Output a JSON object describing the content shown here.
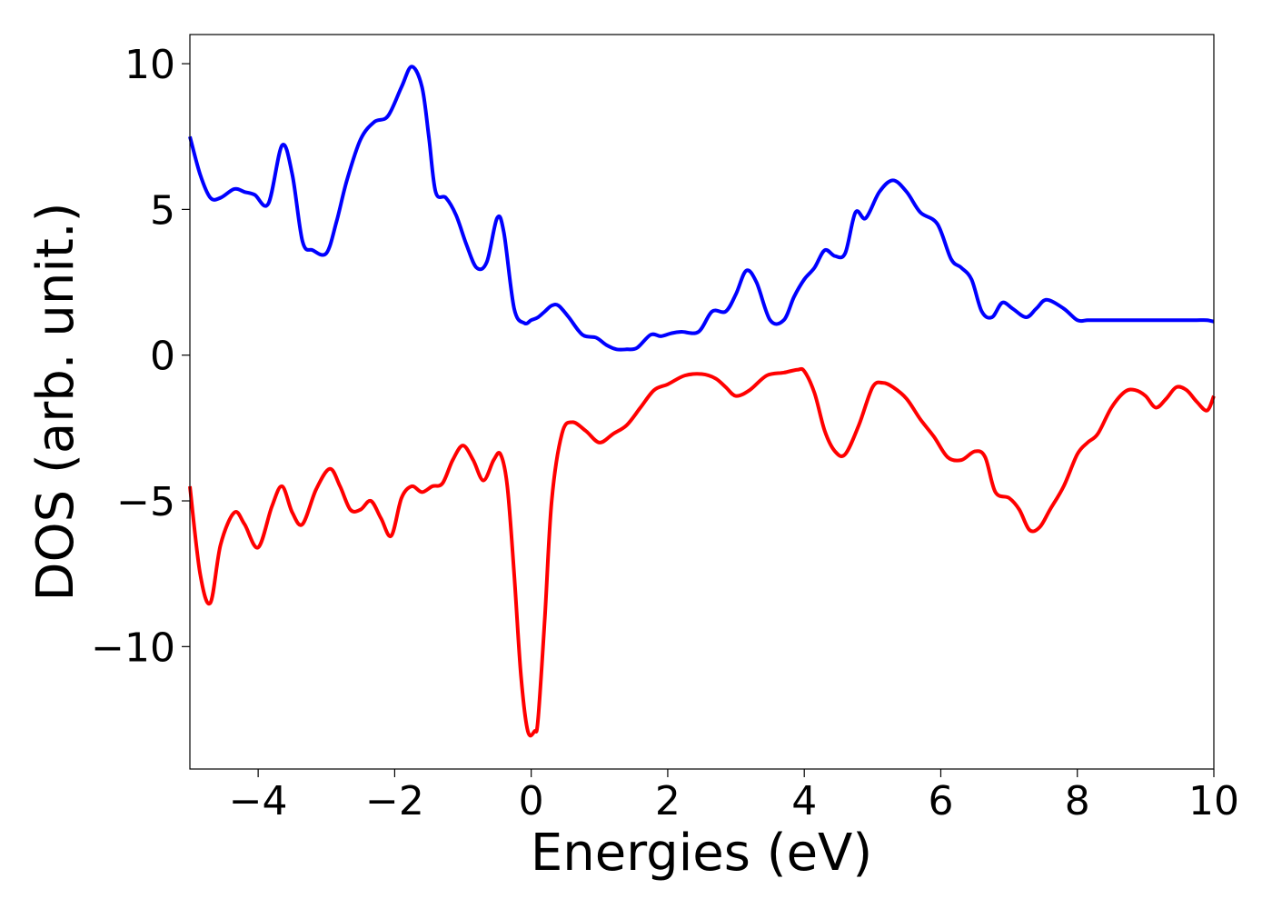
{
  "chart_data": {
    "type": "line",
    "xlabel": "Energies (eV)",
    "ylabel": "DOS (arb. unit.)",
    "xlim": [
      -5,
      10
    ],
    "ylim": [
      -14.2,
      11.0
    ],
    "xticks": [
      -4,
      -2,
      0,
      2,
      4,
      6,
      8,
      10
    ],
    "xtick_labels": [
      "−4",
      "−2",
      "0",
      "2",
      "4",
      "6",
      "8",
      "10"
    ],
    "yticks": [
      10,
      5,
      0,
      -5,
      -10
    ],
    "ytick_labels": [
      "10",
      "5",
      "0",
      "−5",
      "−10"
    ],
    "grid": false,
    "legend": "none",
    "series": [
      {
        "color": "#0000ff",
        "x": [
          -5.0,
          -4.85,
          -4.7,
          -4.55,
          -4.35,
          -4.2,
          -4.05,
          -3.85,
          -3.65,
          -3.5,
          -3.35,
          -3.2,
          -3.0,
          -2.85,
          -2.7,
          -2.5,
          -2.3,
          -2.1,
          -1.9,
          -1.75,
          -1.6,
          -1.5,
          -1.4,
          -1.25,
          -1.1,
          -0.95,
          -0.8,
          -0.65,
          -0.5,
          -0.4,
          -0.25,
          -0.1,
          0.0,
          0.1,
          0.2,
          0.3,
          0.4,
          0.55,
          0.75,
          0.95,
          1.1,
          1.25,
          1.4,
          1.55,
          1.75,
          1.9,
          2.05,
          2.2,
          2.45,
          2.65,
          2.85,
          3.0,
          3.15,
          3.3,
          3.5,
          3.7,
          3.85,
          4.0,
          4.15,
          4.3,
          4.45,
          4.6,
          4.75,
          4.9,
          5.1,
          5.3,
          5.5,
          5.7,
          5.95,
          6.15,
          6.3,
          6.45,
          6.6,
          6.75,
          6.9,
          7.05,
          7.25,
          7.4,
          7.55,
          7.8,
          8.0,
          8.15,
          8.3,
          8.45,
          8.65,
          8.8,
          9.0,
          9.1,
          9.25,
          9.4,
          9.6,
          9.75,
          9.9,
          10.0
        ],
        "y": [
          7.5,
          6.2,
          5.4,
          5.4,
          5.7,
          5.6,
          5.5,
          5.2,
          7.2,
          6.2,
          3.9,
          3.6,
          3.5,
          4.6,
          6.0,
          7.4,
          8.0,
          8.2,
          9.2,
          9.9,
          9.2,
          7.5,
          5.6,
          5.4,
          4.8,
          3.8,
          3.0,
          3.2,
          4.7,
          4.2,
          1.6,
          1.1,
          1.2,
          1.3,
          1.5,
          1.7,
          1.7,
          1.3,
          0.7,
          0.6,
          0.35,
          0.2,
          0.2,
          0.25,
          0.7,
          0.65,
          0.75,
          0.8,
          0.8,
          1.5,
          1.5,
          2.1,
          2.9,
          2.5,
          1.2,
          1.2,
          2.0,
          2.6,
          3.0,
          3.6,
          3.4,
          3.5,
          4.9,
          4.7,
          5.6,
          6.0,
          5.6,
          4.9,
          4.5,
          3.3,
          3.0,
          2.6,
          1.5,
          1.3,
          1.8,
          1.6,
          1.3,
          1.6,
          1.9,
          1.6,
          1.2,
          1.2,
          1.2,
          1.2,
          1.2,
          1.2,
          1.2,
          1.2,
          1.2,
          1.2,
          1.2,
          1.2,
          1.2,
          1.15
        ]
      },
      {
        "color": "#ff0000",
        "x": [
          -5.0,
          -4.85,
          -4.7,
          -4.55,
          -4.35,
          -4.2,
          -4.0,
          -3.8,
          -3.65,
          -3.5,
          -3.35,
          -3.15,
          -2.95,
          -2.8,
          -2.65,
          -2.5,
          -2.35,
          -2.2,
          -2.05,
          -1.9,
          -1.75,
          -1.6,
          -1.45,
          -1.3,
          -1.15,
          -1.0,
          -0.85,
          -0.7,
          -0.55,
          -0.45,
          -0.35,
          -0.25,
          -0.15,
          -0.05,
          0.05,
          0.1,
          0.2,
          0.3,
          0.45,
          0.6,
          0.8,
          1.0,
          1.2,
          1.4,
          1.6,
          1.8,
          2.0,
          2.25,
          2.5,
          2.7,
          2.85,
          3.0,
          3.2,
          3.45,
          3.7,
          3.9,
          4.0,
          4.15,
          4.3,
          4.45,
          4.6,
          4.8,
          5.0,
          5.15,
          5.3,
          5.5,
          5.7,
          5.9,
          6.1,
          6.3,
          6.5,
          6.65,
          6.8,
          7.0,
          7.15,
          7.3,
          7.45,
          7.6,
          7.8,
          8.0,
          8.15,
          8.3,
          8.5,
          8.7,
          8.85,
          9.0,
          9.15,
          9.3,
          9.45,
          9.6,
          9.75,
          9.9,
          10.0
        ],
        "y": [
          -4.5,
          -7.5,
          -8.5,
          -6.5,
          -5.4,
          -5.8,
          -6.6,
          -5.2,
          -4.5,
          -5.4,
          -5.8,
          -4.6,
          -3.9,
          -4.5,
          -5.3,
          -5.3,
          -5.0,
          -5.6,
          -6.2,
          -4.9,
          -4.5,
          -4.7,
          -4.5,
          -4.4,
          -3.6,
          -3.1,
          -3.6,
          -4.3,
          -3.6,
          -3.4,
          -4.5,
          -7.5,
          -11.0,
          -12.9,
          -12.9,
          -12.5,
          -9.0,
          -5.0,
          -2.7,
          -2.3,
          -2.6,
          -3.0,
          -2.7,
          -2.4,
          -1.8,
          -1.2,
          -1.0,
          -0.7,
          -0.65,
          -0.8,
          -1.1,
          -1.4,
          -1.2,
          -0.7,
          -0.6,
          -0.5,
          -0.55,
          -1.3,
          -2.6,
          -3.3,
          -3.4,
          -2.4,
          -1.1,
          -0.95,
          -1.1,
          -1.5,
          -2.2,
          -2.8,
          -3.5,
          -3.6,
          -3.3,
          -3.5,
          -4.7,
          -4.9,
          -5.3,
          -6.0,
          -5.9,
          -5.3,
          -4.5,
          -3.4,
          -3.0,
          -2.7,
          -1.8,
          -1.25,
          -1.2,
          -1.4,
          -1.8,
          -1.5,
          -1.1,
          -1.2,
          -1.6,
          -1.9,
          -1.4
        ]
      }
    ]
  }
}
